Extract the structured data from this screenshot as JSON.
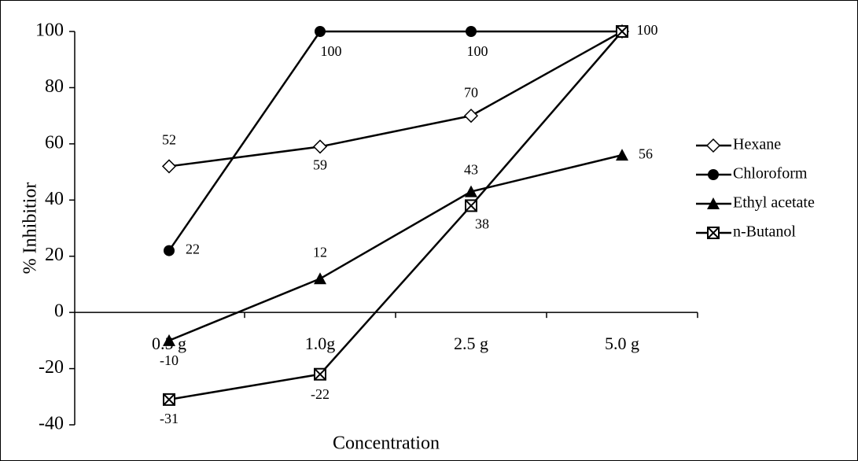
{
  "chart_data": {
    "type": "line",
    "x_label": "Concentration",
    "y_label": "% Inhibitior",
    "categories": [
      "0.5 g",
      "1.0g",
      "2.5 g",
      "5.0 g"
    ],
    "ylim": [
      -40,
      100
    ],
    "yticks": [
      -40,
      -20,
      0,
      20,
      40,
      60,
      80,
      100
    ],
    "legend": "right",
    "series": [
      {
        "name": "Hexane",
        "color": "#000000",
        "marker": "diamond-open",
        "values": [
          52,
          59,
          70,
          100
        ],
        "show_labels": [
          true,
          true,
          true,
          false
        ]
      },
      {
        "name": "Chloroform",
        "color": "#000000",
        "marker": "circle",
        "values": [
          22,
          100,
          100,
          100
        ],
        "show_labels": [
          true,
          true,
          true,
          false
        ]
      },
      {
        "name": "Ethyl acetate",
        "color": "#000000",
        "marker": "triangle",
        "values": [
          -10,
          12,
          43,
          56
        ],
        "show_labels": [
          true,
          true,
          true,
          true
        ]
      },
      {
        "name": "n-Butanol",
        "color": "#000000",
        "marker": "square-x",
        "values": [
          -31,
          -22,
          38,
          100
        ],
        "show_labels": [
          true,
          true,
          true,
          true
        ]
      }
    ]
  }
}
